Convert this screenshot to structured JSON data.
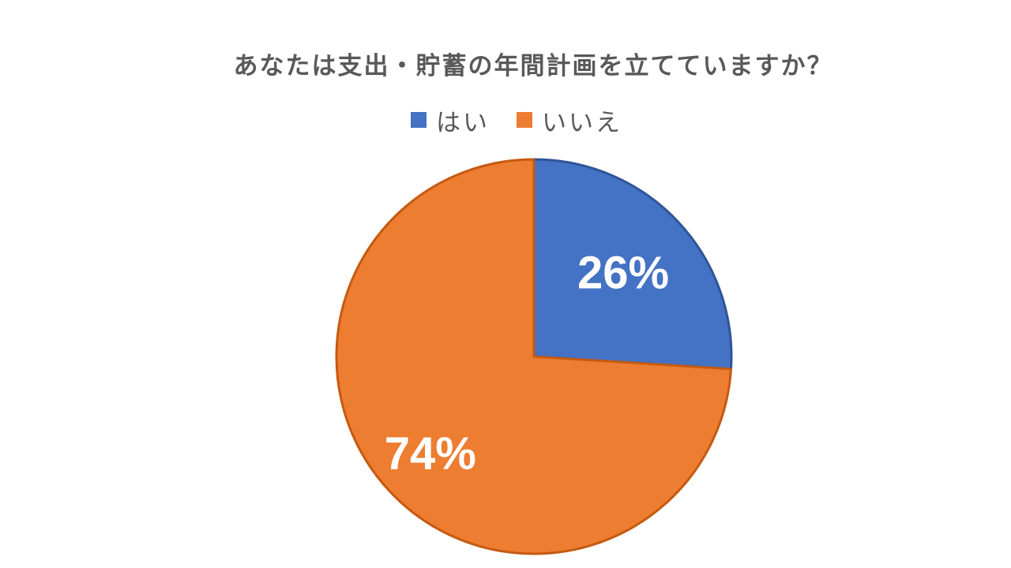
{
  "chart_data": {
    "type": "pie",
    "title": "あなたは支出・貯蓄の年間計画を立てていますか？",
    "categories": [
      "はい",
      "いいえ"
    ],
    "values": [
      26,
      74
    ],
    "data_labels": [
      "26%",
      "74%"
    ],
    "colors": [
      "#4472C4",
      "#ED7D31"
    ],
    "legend_position": "top"
  }
}
